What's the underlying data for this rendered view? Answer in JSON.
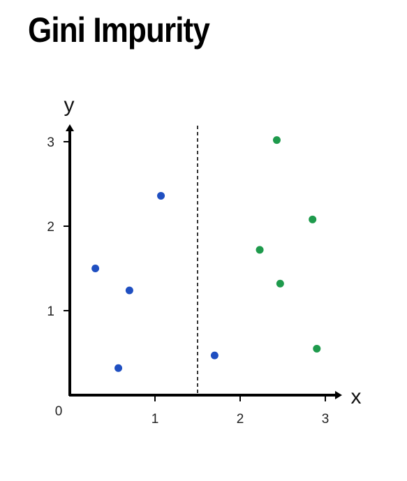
{
  "title": "Gini Impurity",
  "chart_data": {
    "type": "scatter",
    "title": "Gini Impurity",
    "xlabel": "x",
    "ylabel": "y",
    "xlim": [
      0,
      3.1
    ],
    "ylim": [
      0,
      3.15
    ],
    "origin_label": "0",
    "x_ticks": [
      1,
      2,
      3
    ],
    "y_ticks": [
      1,
      2,
      3
    ],
    "split_line_x": 1.5,
    "grid": false,
    "series": [
      {
        "color": "#1f4fc1",
        "points": [
          {
            "x": 0.3,
            "y": 1.5
          },
          {
            "x": 0.57,
            "y": 0.32
          },
          {
            "x": 0.7,
            "y": 1.24
          },
          {
            "x": 1.07,
            "y": 2.36
          },
          {
            "x": 1.7,
            "y": 0.47
          }
        ]
      },
      {
        "color": "#1e9a4c",
        "points": [
          {
            "x": 2.23,
            "y": 1.72
          },
          {
            "x": 2.43,
            "y": 3.02
          },
          {
            "x": 2.47,
            "y": 1.32
          },
          {
            "x": 2.85,
            "y": 2.08
          },
          {
            "x": 2.9,
            "y": 0.55
          }
        ]
      }
    ]
  }
}
